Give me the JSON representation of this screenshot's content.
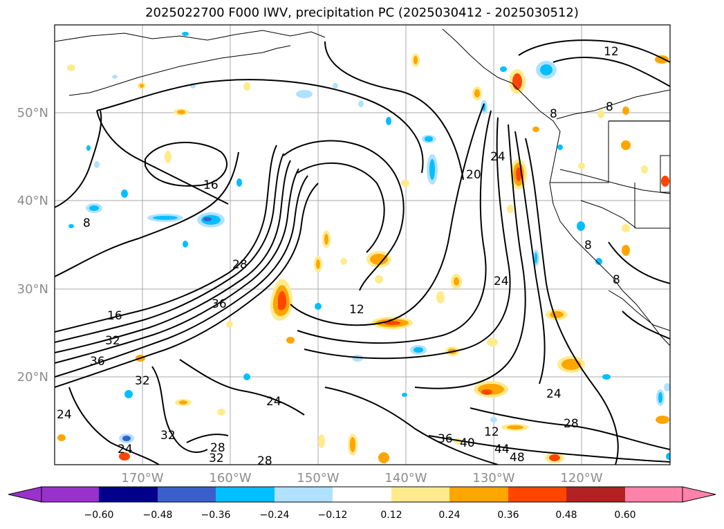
{
  "title": "2025022700 F000 IWV, precipitation PC (2025030412 - 2025030512)",
  "map": {
    "lat_labels": [
      "50°N",
      "40°N",
      "30°N",
      "20°N"
    ],
    "lon_labels": [
      "170°W",
      "160°W",
      "150°W",
      "140°W",
      "130°W",
      "120°W"
    ],
    "contour_labels": [
      "12",
      "8",
      "16",
      "12",
      "8",
      "28",
      "36",
      "16",
      "32",
      "36",
      "24",
      "32",
      "24",
      "32",
      "24",
      "28",
      "32",
      "28",
      "36",
      "40",
      "44",
      "48",
      "24",
      "28",
      "12",
      "20",
      "24",
      "24",
      "8",
      "8",
      "8"
    ]
  },
  "colorbar": {
    "ticks": [
      "−0.60",
      "−0.48",
      "−0.36",
      "−0.24",
      "−0.12",
      "0.12",
      "0.24",
      "0.36",
      "0.48",
      "0.60"
    ],
    "colors": [
      "#9932cc",
      "#00008b",
      "#3a5fcd",
      "#00bfff",
      "#b0e2ff",
      "#ffffff",
      "#ffeb8c",
      "#ffa500",
      "#ff4500",
      "#b22222",
      "#ff82ab"
    ]
  }
}
